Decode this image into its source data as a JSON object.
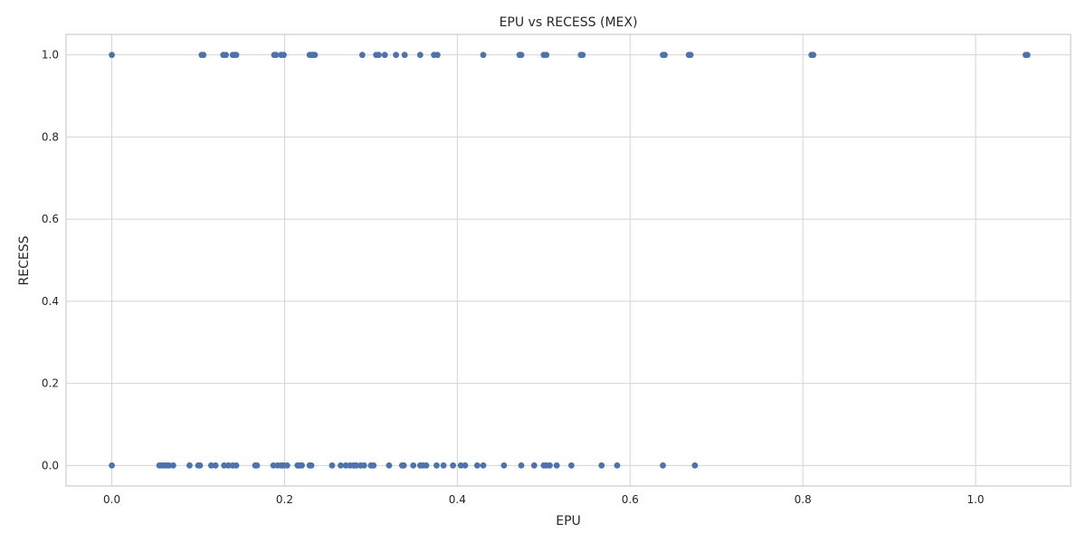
{
  "chart_data": {
    "type": "scatter",
    "title": "EPU vs RECESS (MEX)",
    "xlabel": "EPU",
    "ylabel": "RECESS",
    "xlim": [
      -0.053,
      1.11
    ],
    "ylim": [
      -0.05,
      1.05
    ],
    "xticks": [
      0.0,
      0.2,
      0.4,
      0.6,
      0.8,
      1.0
    ],
    "xtick_labels": [
      "0.0",
      "0.2",
      "0.4",
      "0.6",
      "0.8",
      "1.0"
    ],
    "yticks": [
      0.0,
      0.2,
      0.4,
      0.6,
      0.8,
      1.0
    ],
    "ytick_labels": [
      "0.0",
      "0.2",
      "0.4",
      "0.6",
      "0.8",
      "1.0"
    ],
    "grid": true,
    "legend": "none",
    "marker_color": "#4c72b0",
    "series": [
      {
        "x": [
          0.0,
          0.104,
          0.106,
          0.129,
          0.132,
          0.14,
          0.142,
          0.144,
          0.188,
          0.19,
          0.196,
          0.199,
          0.229,
          0.231,
          0.233,
          0.235,
          0.29,
          0.306,
          0.309,
          0.316,
          0.329,
          0.339,
          0.357,
          0.373,
          0.377,
          0.43,
          0.472,
          0.474,
          0.5,
          0.503,
          0.543,
          0.545,
          0.638,
          0.64,
          0.668,
          0.67,
          0.81,
          0.812,
          1.058,
          1.06
        ],
        "y": [
          1,
          1,
          1,
          1,
          1,
          1,
          1,
          1,
          1,
          1,
          1,
          1,
          1,
          1,
          1,
          1,
          1,
          1,
          1,
          1,
          1,
          1,
          1,
          1,
          1,
          1,
          1,
          1,
          1,
          1,
          1,
          1,
          1,
          1,
          1,
          1,
          1,
          1,
          1,
          1
        ]
      },
      {
        "x": [
          0.0,
          0.055,
          0.058,
          0.06,
          0.063,
          0.066,
          0.071,
          0.09,
          0.1,
          0.102,
          0.115,
          0.12,
          0.13,
          0.135,
          0.14,
          0.144,
          0.166,
          0.168,
          0.187,
          0.192,
          0.196,
          0.199,
          0.203,
          0.215,
          0.217,
          0.22,
          0.229,
          0.231,
          0.255,
          0.265,
          0.271,
          0.276,
          0.28,
          0.283,
          0.288,
          0.292,
          0.3,
          0.303,
          0.321,
          0.336,
          0.338,
          0.349,
          0.357,
          0.36,
          0.364,
          0.376,
          0.384,
          0.395,
          0.404,
          0.409,
          0.423,
          0.43,
          0.454,
          0.474,
          0.489,
          0.5,
          0.503,
          0.507,
          0.515,
          0.532,
          0.567,
          0.585,
          0.638,
          0.675
        ],
        "y": [
          0,
          0,
          0,
          0,
          0,
          0,
          0,
          0,
          0,
          0,
          0,
          0,
          0,
          0,
          0,
          0,
          0,
          0,
          0,
          0,
          0,
          0,
          0,
          0,
          0,
          0,
          0,
          0,
          0,
          0,
          0,
          0,
          0,
          0,
          0,
          0,
          0,
          0,
          0,
          0,
          0,
          0,
          0,
          0,
          0,
          0,
          0,
          0,
          0,
          0,
          0,
          0,
          0,
          0,
          0,
          0,
          0,
          0,
          0,
          0,
          0,
          0,
          0,
          0
        ]
      }
    ]
  }
}
